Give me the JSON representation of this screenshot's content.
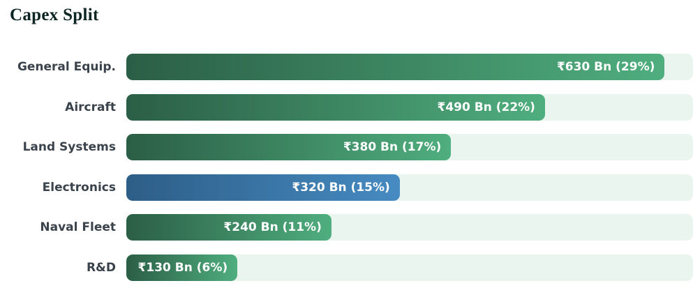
{
  "page": {
    "title": "Capex Split"
  },
  "chart_data": {
    "type": "bar",
    "orientation": "horizontal",
    "title": "Capex Split",
    "unit": "₹ Bn",
    "categories": [
      "General Equip.",
      "Aircraft",
      "Land Systems",
      "Electronics",
      "Naval Fleet",
      "R&D"
    ],
    "values": [
      630,
      490,
      380,
      320,
      240,
      130
    ],
    "percents": [
      29,
      22,
      17,
      15,
      11,
      6
    ],
    "value_labels": [
      "₹630 Bn (29%)",
      "₹490 Bn (22%)",
      "₹380 Bn (17%)",
      "₹320 Bn (15%)",
      "₹240 Bn (11%)",
      "₹130 Bn (6%)"
    ],
    "xlim": [
      0,
      663
    ],
    "grid": false,
    "legend": "none",
    "max_bar_width_pct": 95,
    "highlight_index": 3,
    "colors": {
      "bar_gradient_start": "#2b5e46",
      "bar_gradient_end": "#4fae7e",
      "highlight_gradient_start": "#2d5e87",
      "highlight_gradient_end": "#468bc2",
      "track": "#eaf5f0",
      "label_text": "#3a424b",
      "value_text": "#ffffff",
      "title_text": "#0d2523",
      "background": "#ffffff"
    }
  }
}
